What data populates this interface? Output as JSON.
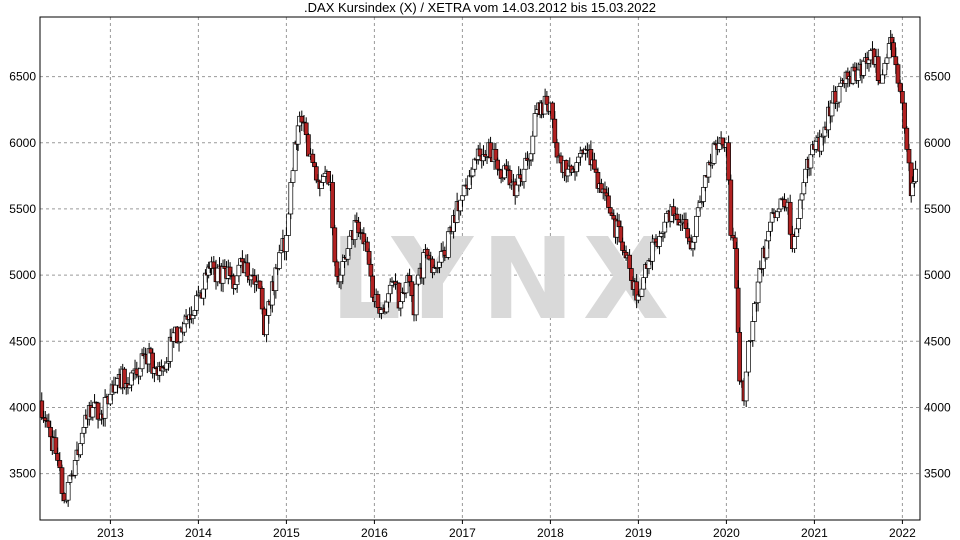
{
  "chart_data": {
    "type": "candlestick",
    "title": ".DAX Kursindex (X) / XETRA vom 14.03.2012 bis 15.03.2022",
    "xlabel": "",
    "ylabel": "",
    "x_ticks": [
      "2013",
      "2014",
      "2015",
      "2016",
      "2017",
      "2018",
      "2019",
      "2020",
      "2021",
      "2022"
    ],
    "y_ticks": [
      3500,
      4000,
      4500,
      5000,
      5500,
      6000,
      6500
    ],
    "ylim": [
      3150,
      6950
    ],
    "xlim": [
      2012.2,
      2022.2
    ],
    "grid": true,
    "watermark": "LYNX",
    "colors": {
      "up_fill": "#ffffff",
      "down_fill": "#b22222",
      "wick": "#000000",
      "grid": "#9a9a9a"
    },
    "series": [
      {
        "values": [
          [
            2012.2,
            4050
          ],
          [
            2012.3,
            3850
          ],
          [
            2012.4,
            3600
          ],
          [
            2012.45,
            3350
          ],
          [
            2012.5,
            3300
          ],
          [
            2012.6,
            3600
          ],
          [
            2012.7,
            3850
          ],
          [
            2012.8,
            4000
          ],
          [
            2012.9,
            3950
          ],
          [
            2013.0,
            4100
          ],
          [
            2013.1,
            4250
          ],
          [
            2013.2,
            4150
          ],
          [
            2013.3,
            4250
          ],
          [
            2013.4,
            4400
          ],
          [
            2013.5,
            4300
          ],
          [
            2013.6,
            4300
          ],
          [
            2013.7,
            4500
          ],
          [
            2013.8,
            4600
          ],
          [
            2013.9,
            4700
          ],
          [
            2014.0,
            4850
          ],
          [
            2014.1,
            5000
          ],
          [
            2014.15,
            5100
          ],
          [
            2014.2,
            4950
          ],
          [
            2014.3,
            5050
          ],
          [
            2014.4,
            4900
          ],
          [
            2014.5,
            5100
          ],
          [
            2014.6,
            5000
          ],
          [
            2014.7,
            4900
          ],
          [
            2014.75,
            4550
          ],
          [
            2014.8,
            4800
          ],
          [
            2014.9,
            5050
          ],
          [
            2015.0,
            5300
          ],
          [
            2015.05,
            5700
          ],
          [
            2015.1,
            6000
          ],
          [
            2015.15,
            6200
          ],
          [
            2015.2,
            6150
          ],
          [
            2015.25,
            5900
          ],
          [
            2015.3,
            5850
          ],
          [
            2015.4,
            5700
          ],
          [
            2015.5,
            5700
          ],
          [
            2015.55,
            5100
          ],
          [
            2015.6,
            4950
          ],
          [
            2015.7,
            5200
          ],
          [
            2015.8,
            5400
          ],
          [
            2015.9,
            5250
          ],
          [
            2016.0,
            4800
          ],
          [
            2016.1,
            4750
          ],
          [
            2016.2,
            4950
          ],
          [
            2016.3,
            4800
          ],
          [
            2016.4,
            4950
          ],
          [
            2016.45,
            4700
          ],
          [
            2016.5,
            5000
          ],
          [
            2016.6,
            5150
          ],
          [
            2016.7,
            5050
          ],
          [
            2016.8,
            5150
          ],
          [
            2016.9,
            5450
          ],
          [
            2017.0,
            5600
          ],
          [
            2017.1,
            5750
          ],
          [
            2017.2,
            5900
          ],
          [
            2017.3,
            6000
          ],
          [
            2017.4,
            5800
          ],
          [
            2017.5,
            5800
          ],
          [
            2017.6,
            5600
          ],
          [
            2017.7,
            5800
          ],
          [
            2017.8,
            6050
          ],
          [
            2017.85,
            6250
          ],
          [
            2017.9,
            6300
          ],
          [
            2018.0,
            6300
          ],
          [
            2018.05,
            6000
          ],
          [
            2018.1,
            5900
          ],
          [
            2018.2,
            5800
          ],
          [
            2018.3,
            5850
          ],
          [
            2018.4,
            5950
          ],
          [
            2018.5,
            5800
          ],
          [
            2018.6,
            5650
          ],
          [
            2018.7,
            5450
          ],
          [
            2018.8,
            5250
          ],
          [
            2018.9,
            5050
          ],
          [
            2019.0,
            4850
          ],
          [
            2019.1,
            5050
          ],
          [
            2019.2,
            5250
          ],
          [
            2019.3,
            5400
          ],
          [
            2019.4,
            5450
          ],
          [
            2019.5,
            5400
          ],
          [
            2019.6,
            5200
          ],
          [
            2019.7,
            5550
          ],
          [
            2019.8,
            5850
          ],
          [
            2019.9,
            5950
          ],
          [
            2020.0,
            6000
          ],
          [
            2020.05,
            5300
          ],
          [
            2020.1,
            5200
          ],
          [
            2020.15,
            4200
          ],
          [
            2020.2,
            4050
          ],
          [
            2020.25,
            4500
          ],
          [
            2020.3,
            4650
          ],
          [
            2020.4,
            5050
          ],
          [
            2020.5,
            5400
          ],
          [
            2020.6,
            5500
          ],
          [
            2020.7,
            5550
          ],
          [
            2020.75,
            5200
          ],
          [
            2020.8,
            5350
          ],
          [
            2020.9,
            5800
          ],
          [
            2021.0,
            5950
          ],
          [
            2021.1,
            6050
          ],
          [
            2021.2,
            6300
          ],
          [
            2021.3,
            6450
          ],
          [
            2021.4,
            6500
          ],
          [
            2021.5,
            6550
          ],
          [
            2021.6,
            6600
          ],
          [
            2021.7,
            6650
          ],
          [
            2021.75,
            6450
          ],
          [
            2021.8,
            6600
          ],
          [
            2021.85,
            6750
          ],
          [
            2021.9,
            6650
          ],
          [
            2021.95,
            6450
          ],
          [
            2022.0,
            6300
          ],
          [
            2022.05,
            5950
          ],
          [
            2022.1,
            5600
          ],
          [
            2022.15,
            5800
          ]
        ]
      }
    ]
  }
}
